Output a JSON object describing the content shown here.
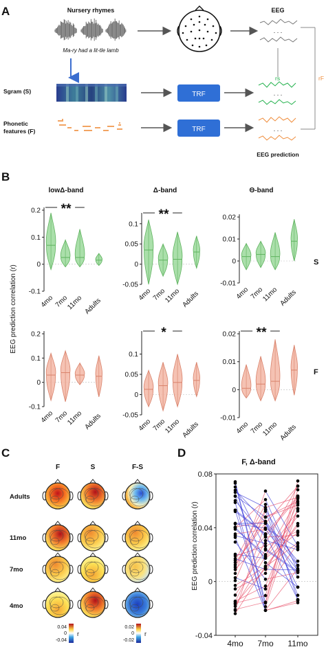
{
  "panel_letters": {
    "a": "A",
    "b": "B",
    "c": "C",
    "d": "D"
  },
  "panel_a": {
    "nursery_title": "Nursery rhymes",
    "rhyme_text": "Ma-ry had a lit-tle lamb",
    "eeg_label": "EEG",
    "sgram_label": "Sgram (S)",
    "phon_label_1": "Phonetic",
    "phon_label_2": "features (F)",
    "trf_label": "TRF",
    "eeg_prediction_label": "EEG prediction",
    "rs_label": "rs",
    "rf_label": "rF",
    "colors": {
      "trf": "#2f6fd6",
      "green": "#22b14c",
      "orange": "#ef8c3a",
      "arrow": "#555555"
    }
  },
  "panel_b": {
    "y_axis_label": "EEG prediction correlation (r)",
    "row_labels": [
      "S",
      "F"
    ],
    "band_titles": [
      "lowΔ-band",
      "Δ-band",
      "Θ-band"
    ],
    "x_categories": [
      "4mo",
      "7mo",
      "11mo",
      "Adults"
    ],
    "sig_marks": [
      "**",
      "**",
      "",
      "",
      "*",
      "**"
    ],
    "colors": {
      "S": "#9bd99b",
      "S_edge": "#5fb35f",
      "F": "#f3b7a6",
      "F_edge": "#d9826b"
    }
  },
  "chart_data": [
    {
      "type": "violin",
      "title": "lowΔ-band",
      "row": "S",
      "categories": [
        "4mo",
        "7mo",
        "11mo",
        "Adults"
      ],
      "medians": [
        0.07,
        0.025,
        0.025,
        0.015
      ],
      "ranges": [
        [
          -0.02,
          0.19
        ],
        [
          -0.01,
          0.09
        ],
        [
          -0.01,
          0.13
        ],
        [
          -0.005,
          0.04
        ]
      ],
      "ylim": [
        -0.1,
        0.2
      ],
      "yticks": [
        "0.2",
        "0.1",
        "0",
        "-0.1"
      ]
    },
    {
      "type": "violin",
      "title": "Δ-band",
      "row": "S",
      "categories": [
        "4mo",
        "7mo",
        "11mo",
        "Adults"
      ],
      "medians": [
        0.035,
        0.01,
        0.012,
        0.03
      ],
      "ranges": [
        [
          -0.05,
          0.11
        ],
        [
          -0.03,
          0.05
        ],
        [
          -0.05,
          0.08
        ],
        [
          -0.01,
          0.07
        ]
      ],
      "ylim": [
        -0.05,
        0.12
      ],
      "yticks": [
        "0.1",
        "0.05",
        "0",
        "-0.05"
      ]
    },
    {
      "type": "violin",
      "title": "Θ-band",
      "row": "S",
      "categories": [
        "4mo",
        "7mo",
        "11mo",
        "Adults"
      ],
      "medians": [
        0.002,
        0.003,
        0.002,
        0.009
      ],
      "ranges": [
        [
          -0.004,
          0.008
        ],
        [
          -0.003,
          0.009
        ],
        [
          -0.004,
          0.013
        ],
        [
          0.0,
          0.019
        ]
      ],
      "ylim": [
        -0.01,
        0.02
      ],
      "yticks": [
        "0.02",
        "0.01",
        "0",
        "-0.01"
      ]
    },
    {
      "type": "violin",
      "title": "lowΔ-band",
      "row": "F",
      "categories": [
        "4mo",
        "7mo",
        "11mo",
        "Adults"
      ],
      "medians": [
        0.03,
        0.04,
        0.03,
        0.025
      ],
      "ranges": [
        [
          -0.075,
          0.12
        ],
        [
          -0.08,
          0.13
        ],
        [
          -0.01,
          0.08
        ],
        [
          -0.06,
          0.11
        ]
      ],
      "ylim": [
        -0.1,
        0.2
      ],
      "yticks": [
        "0.2",
        "0.1",
        "0",
        "-0.1"
      ]
    },
    {
      "type": "violin",
      "title": "Δ-band",
      "row": "F",
      "categories": [
        "4mo",
        "7mo",
        "11mo",
        "Adults"
      ],
      "medians": [
        0.013,
        0.022,
        0.03,
        0.035
      ],
      "ranges": [
        [
          -0.03,
          0.06
        ],
        [
          -0.04,
          0.08
        ],
        [
          -0.03,
          0.1
        ],
        [
          -0.005,
          0.08
        ]
      ],
      "ylim": [
        -0.05,
        0.15
      ],
      "yticks": [
        "0.1",
        "0.05",
        "0",
        "-0.05"
      ]
    },
    {
      "type": "violin",
      "title": "Θ-band",
      "row": "F",
      "categories": [
        "4mo",
        "7mo",
        "11mo",
        "Adults"
      ],
      "medians": [
        0.0005,
        0.002,
        0.003,
        0.007
      ],
      "ranges": [
        [
          -0.003,
          0.009
        ],
        [
          -0.004,
          0.012
        ],
        [
          -0.004,
          0.018
        ],
        [
          -0.002,
          0.016
        ]
      ],
      "ylim": [
        -0.01,
        0.02
      ],
      "yticks": [
        "0.02",
        "0.01",
        "0",
        "-0.01"
      ]
    },
    {
      "type": "line",
      "title": "F, Δ-band",
      "categories": [
        "4mo",
        "7mo",
        "11mo"
      ],
      "ylabel": "EEG prediction correlation (r)",
      "ylim": [
        -0.04,
        0.08
      ],
      "yticks": [
        "0.08",
        "0.04",
        "0",
        "-0.04"
      ],
      "colors": {
        "increase": "#e8506a",
        "decrease": "#3a3ad8"
      }
    }
  ],
  "panel_c": {
    "col_labels": [
      "F",
      "S",
      "F-S"
    ],
    "row_labels": [
      "Adults",
      "11mo",
      "7mo",
      "4mo"
    ],
    "colorbar_left": {
      "max": "0.04",
      "mid": "0",
      "min": "-0.04",
      "label": "r"
    },
    "colorbar_right": {
      "max": "0.02",
      "mid": "0",
      "min": "-0.02",
      "label": "r"
    }
  },
  "panel_d": {
    "title": "F, Δ-band",
    "y_axis_label": "EEG prediction correlation (r)",
    "x_categories": [
      "4mo",
      "7mo",
      "11mo"
    ],
    "yticks": [
      "0.08",
      "0.04",
      "0",
      "-0.04"
    ]
  }
}
